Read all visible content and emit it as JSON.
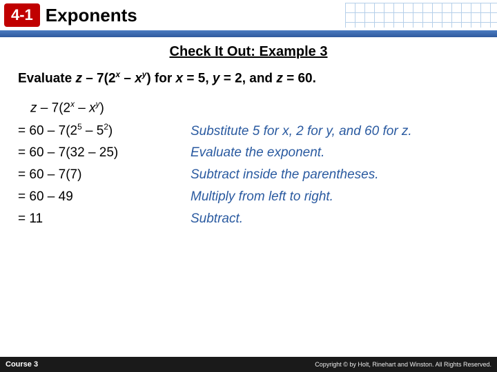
{
  "header": {
    "section_number": "4-1",
    "title": "Exponents",
    "badge_bg": "#c00000",
    "badge_fg": "#ffffff",
    "bar_color": "#2f5a9e",
    "grid_color": "#7aa8d8"
  },
  "subtitle": "Check It Out: Example 3",
  "problem": {
    "prefix": "Evaluate ",
    "var_z": "z",
    "text1": " – 7(2",
    "exp1": "x",
    "text2": " – ",
    "var_x": "x",
    "exp2": "y",
    "text3": ") for ",
    "var_x2": "x",
    "eq1": " = 5, ",
    "var_y": "y",
    "eq2": " = 2, and ",
    "var_z2": "z",
    "eq3": " = 60."
  },
  "first_expr": {
    "z": "z",
    "mid1": " – 7(2",
    "e1": "x",
    "mid2": " – ",
    "x": "x",
    "e2": "y",
    "tail": ")"
  },
  "steps": [
    {
      "expr_html": "= 60 – 7(2<sup class='sup'>5</sup> – 5<sup class='sup'>2</sup>)",
      "note": "Substitute 5 for x, 2 for y, and 60 for z."
    },
    {
      "expr_html": "= 60 – 7(32 – 25)",
      "note": "Evaluate the exponent."
    },
    {
      "expr_html": "= 60 – 7(7)",
      "note": "Subtract inside the parentheses."
    },
    {
      "expr_html": "= 60 – 49",
      "note": "Multiply from left to right."
    },
    {
      "expr_html": "= 11",
      "note": "Subtract."
    }
  ],
  "footer": {
    "left": "Course 3",
    "right": "Copyright © by Holt, Rinehart and Winston. All Rights Reserved."
  },
  "colors": {
    "note_color": "#2a5aa0",
    "text_color": "#000000",
    "background": "#ffffff",
    "footer_bg": "#1a1a1a",
    "footer_fg": "#ffffff"
  },
  "typography": {
    "body_font": "Verdana, Geneva, sans-serif",
    "title_size_pt": 20,
    "subtitle_size_pt": 15,
    "body_size_pt": 14
  }
}
